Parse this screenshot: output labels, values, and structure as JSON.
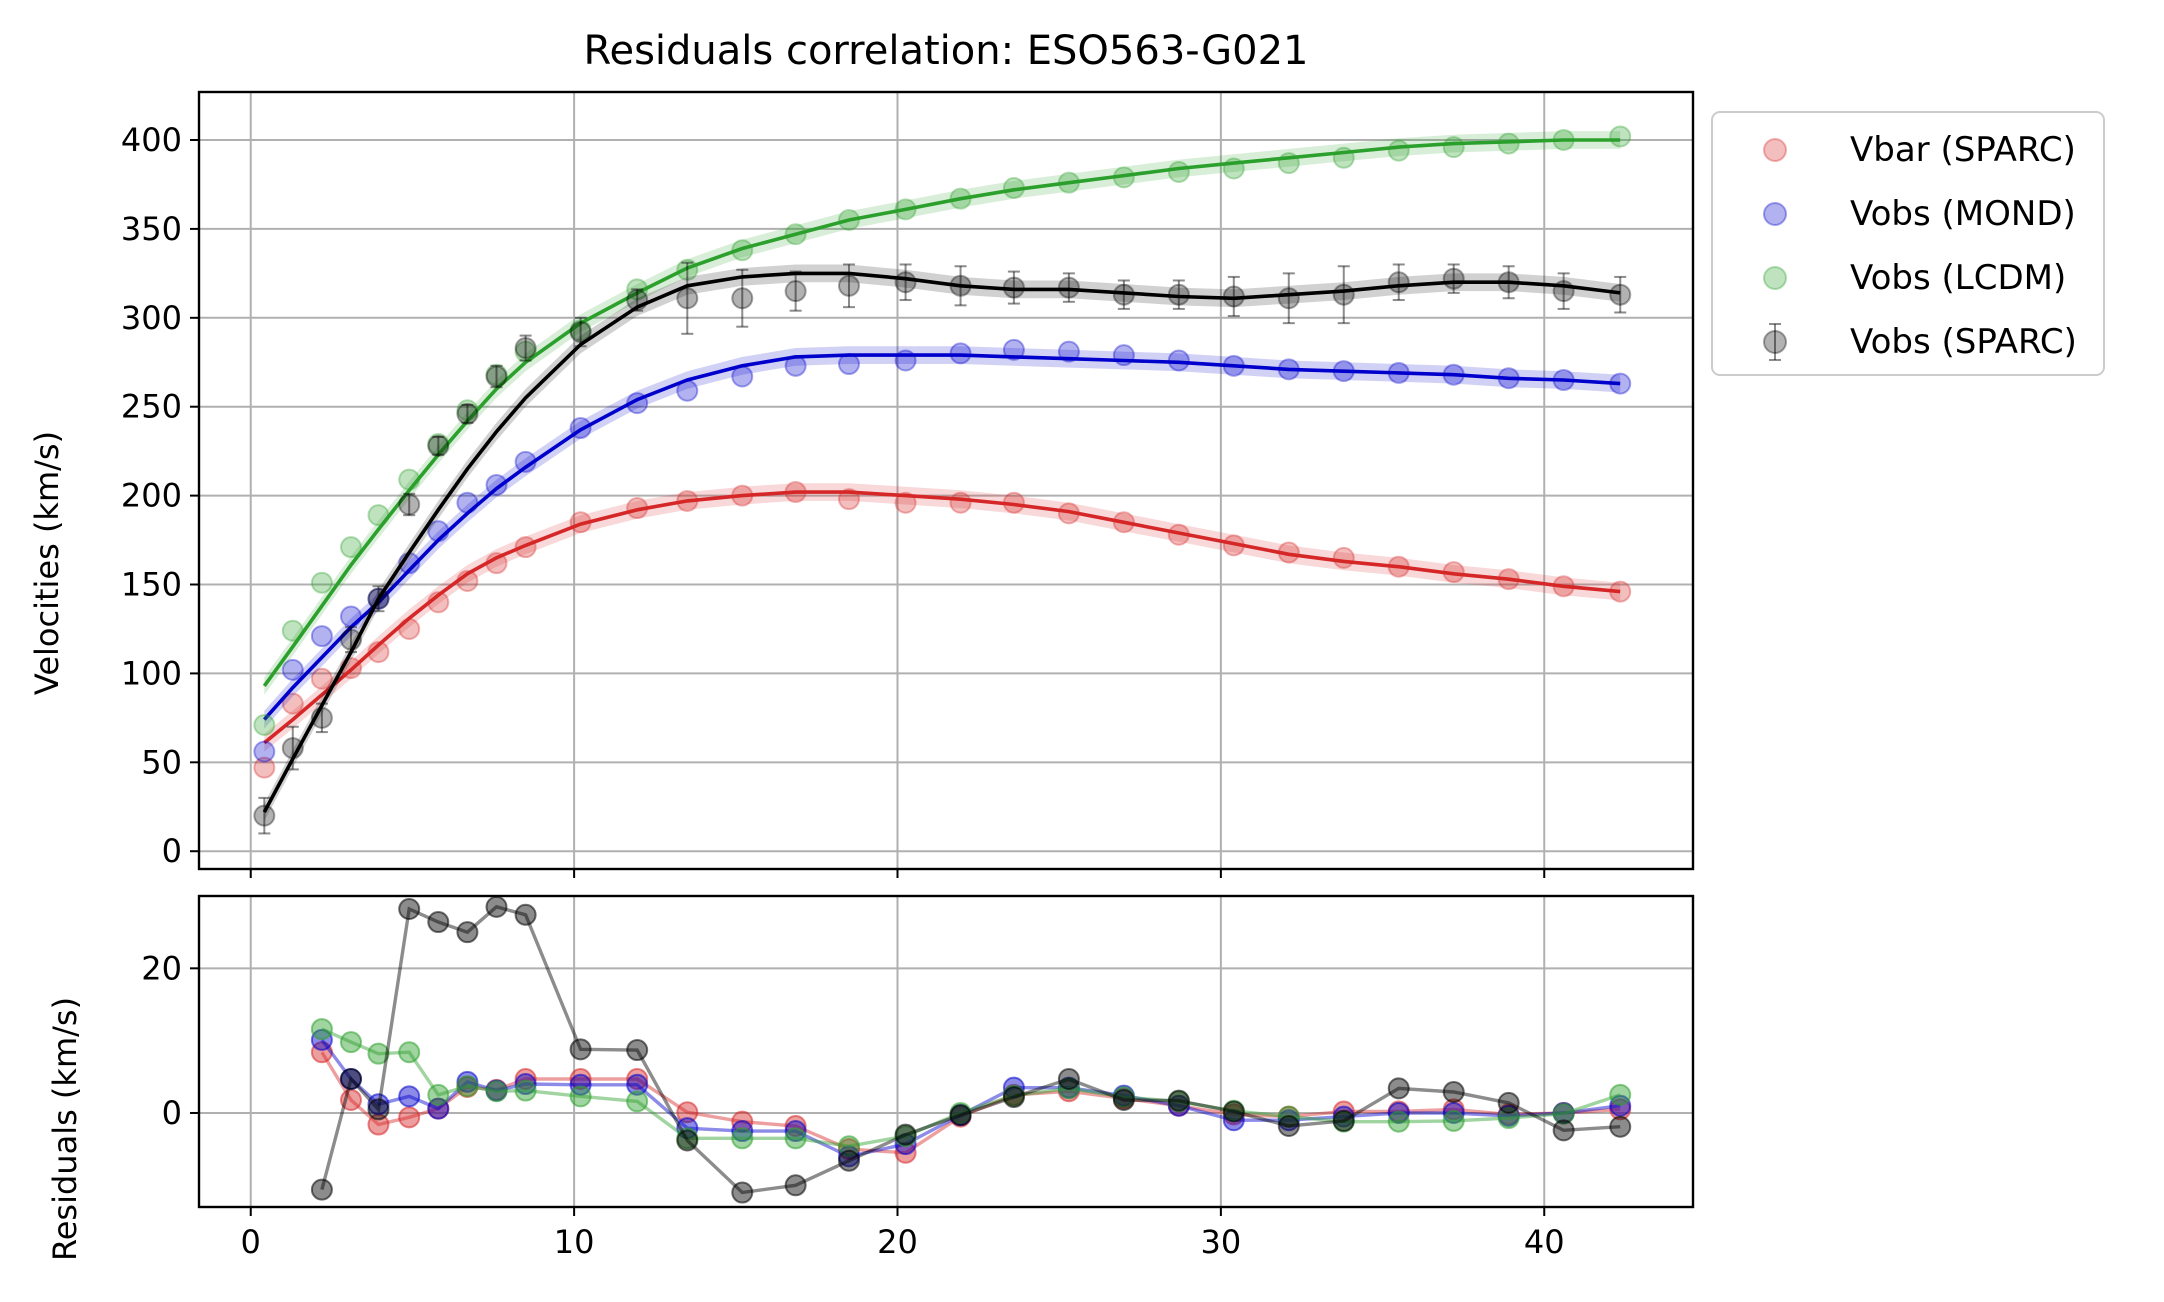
{
  "chart_data": [
    {
      "type": "line",
      "title": "Residuals correlation: ESO563-G021",
      "xlabel": "",
      "ylabel": "Velocities (km/s)",
      "xlim": [
        -1.6,
        44.6
      ],
      "ylim": [
        -10,
        427
      ],
      "grid": true,
      "xticks": [
        0,
        10,
        20,
        30,
        40
      ],
      "yticks": [
        0,
        50,
        100,
        150,
        200,
        250,
        300,
        350,
        400
      ],
      "legend_position": "outside-upper-right",
      "x": [
        0.42,
        1.3,
        2.2,
        3.1,
        3.95,
        4.9,
        5.8,
        6.7,
        7.6,
        8.5,
        10.2,
        11.95,
        13.5,
        15.2,
        16.85,
        18.5,
        20.25,
        21.95,
        23.6,
        25.3,
        27.0,
        28.7,
        30.4,
        32.1,
        33.8,
        35.5,
        37.2,
        38.9,
        40.6,
        42.35
      ],
      "series": [
        {
          "name": "Vbar (SPARC)",
          "color": "#d62728",
          "marker": "circle",
          "values": [
            47,
            83,
            97,
            103,
            112,
            125,
            140,
            152,
            162,
            171,
            185,
            193,
            197,
            200,
            202,
            198,
            196,
            196,
            196,
            190,
            185,
            178,
            172,
            168,
            165,
            160,
            157,
            153,
            149,
            146
          ],
          "fit": [
            61,
            74,
            88,
            102,
            116,
            131,
            144,
            156,
            165,
            172,
            184,
            192,
            197,
            200,
            202,
            202,
            200,
            198,
            195,
            191,
            185,
            179,
            173,
            167,
            163,
            160,
            156,
            153,
            149,
            146
          ]
        },
        {
          "name": "Vobs (MOND)",
          "color": "#0000cc",
          "marker": "circle",
          "values": [
            56,
            102,
            121,
            132,
            142,
            162,
            180,
            196,
            206,
            219,
            238,
            252,
            259,
            267,
            273,
            274,
            276,
            280,
            282,
            281,
            279,
            276,
            273,
            271,
            270,
            269,
            268,
            266,
            265,
            263
          ],
          "fit": [
            74,
            92,
            109,
            126,
            140,
            158,
            175,
            190,
            204,
            216,
            237,
            254,
            265,
            273,
            278,
            279,
            279,
            279,
            278,
            277,
            276,
            275,
            273,
            271,
            270,
            269,
            268,
            266,
            265,
            263
          ]
        },
        {
          "name": "Vobs (LCDM)",
          "color": "#2ca02c",
          "marker": "circle",
          "values": [
            71,
            124,
            151,
            171,
            189,
            209,
            229,
            248,
            268,
            281,
            293,
            316,
            327,
            338,
            347,
            355,
            361,
            367,
            373,
            376,
            379,
            382,
            384,
            387,
            390,
            394,
            396,
            398,
            400,
            402
          ],
          "fit": [
            93,
            115,
            138,
            161,
            181,
            203,
            223,
            242,
            260,
            275,
            297,
            314,
            328,
            339,
            347,
            355,
            361,
            367,
            372,
            376,
            380,
            384,
            387,
            390,
            393,
            396,
            398,
            399,
            400,
            400
          ]
        },
        {
          "name": "Vobs (SPARC)",
          "color": "#000000",
          "marker": "circle",
          "values": [
            20,
            58,
            75,
            119,
            142,
            195,
            228,
            246,
            267,
            283,
            292,
            310,
            311,
            311,
            315,
            318,
            320,
            318,
            317,
            317,
            313,
            313,
            312,
            311,
            313,
            320,
            322,
            320,
            315,
            313
          ],
          "errors": [
            10,
            12,
            8,
            7,
            7,
            6,
            5,
            5,
            6,
            7,
            8,
            6,
            20,
            16,
            11,
            12,
            10,
            11,
            9,
            8,
            8,
            8,
            11,
            14,
            16,
            10,
            8,
            9,
            10,
            10
          ],
          "fit": [
            22,
            52,
            82,
            112,
            142,
            168,
            192,
            215,
            236,
            255,
            285,
            306,
            318,
            323,
            325,
            325,
            322,
            318,
            316,
            316,
            314,
            312,
            311,
            313,
            315,
            318,
            320,
            320,
            318,
            314
          ]
        }
      ]
    },
    {
      "type": "line",
      "title": "",
      "xlabel": "",
      "ylabel": "Residuals (km/s)",
      "xlim": [
        -1.6,
        44.6
      ],
      "ylim": [
        -13,
        30
      ],
      "grid": true,
      "xticks": [
        0,
        10,
        20,
        30,
        40
      ],
      "yticks": [
        0,
        20
      ],
      "x": [
        2.2,
        3.1,
        3.95,
        4.9,
        5.8,
        6.7,
        7.6,
        8.5,
        10.2,
        11.95,
        13.5,
        15.2,
        16.85,
        18.5,
        20.25,
        21.95,
        23.6,
        25.3,
        27.0,
        28.7,
        30.4,
        32.1,
        33.8,
        35.5,
        37.2,
        38.9,
        40.6,
        42.35
      ],
      "series": [
        {
          "name": "Vbar (SPARC)",
          "color": "#d62728",
          "values": [
            8.4,
            1.8,
            -1.6,
            -0.6,
            0.6,
            3.6,
            3.2,
            4.7,
            4.7,
            4.7,
            0.1,
            -1.2,
            -1.8,
            -5.0,
            -5.5,
            -0.5,
            2.5,
            3.0,
            2.0,
            1.0,
            -0.2,
            -0.5,
            0.2,
            0.2,
            0.5,
            -0.2,
            0.0,
            0.5
          ]
        },
        {
          "name": "Vobs (MOND)",
          "color": "#0000cc",
          "values": [
            10.1,
            4.7,
            1.2,
            2.3,
            0.6,
            4.3,
            3.1,
            4.0,
            3.9,
            3.9,
            -2.1,
            -2.5,
            -2.5,
            -6.0,
            -4.3,
            -0.3,
            3.5,
            3.5,
            2.4,
            1.0,
            -1.0,
            -1.0,
            -0.5,
            0.0,
            0.0,
            -0.4,
            0.0,
            1.0
          ]
        },
        {
          "name": "Vobs (LCDM)",
          "color": "#2ca02c",
          "values": [
            11.6,
            9.8,
            8.2,
            8.4,
            2.5,
            3.7,
            3.0,
            3.1,
            2.3,
            1.6,
            -3.5,
            -3.5,
            -3.5,
            -4.6,
            -3.2,
            0.0,
            2.4,
            3.4,
            2.2,
            1.6,
            0.3,
            -0.5,
            -1.2,
            -1.2,
            -1.1,
            -0.7,
            -0.1,
            2.5
          ]
        },
        {
          "name": "Vobs (SPARC)",
          "color": "#000000",
          "values": [
            -10.6,
            4.7,
            0.5,
            28.2,
            26.4,
            25.0,
            28.5,
            27.4,
            8.8,
            8.7,
            -3.8,
            -11.0,
            -10.0,
            -6.6,
            -3.0,
            -0.3,
            2.2,
            4.7,
            1.8,
            1.7,
            0.2,
            -1.8,
            -1.1,
            3.4,
            2.9,
            1.4,
            -2.4,
            -1.9
          ]
        }
      ]
    }
  ]
}
